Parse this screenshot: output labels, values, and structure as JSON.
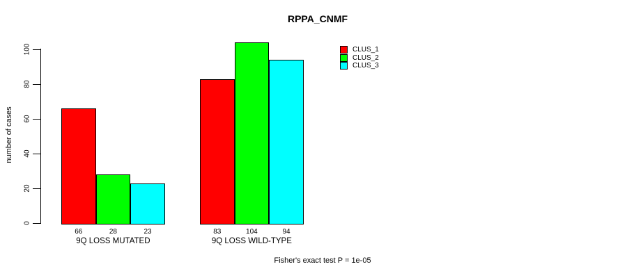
{
  "chart_data": {
    "type": "bar",
    "title": "RPPA_CNMF",
    "xlabel": "",
    "ylabel": "number of cases",
    "categories": [
      "9Q LOSS MUTATED",
      "9Q LOSS WILD-TYPE"
    ],
    "series": [
      {
        "name": "CLUS_1",
        "color": "#ff0000",
        "values": [
          66,
          83
        ]
      },
      {
        "name": "CLUS_2",
        "color": "#00ff00",
        "values": [
          28,
          104
        ]
      },
      {
        "name": "CLUS_3",
        "color": "#00ffff",
        "values": [
          23,
          94
        ]
      }
    ],
    "bar_value_labels": [
      [
        66,
        28,
        23
      ],
      [
        83,
        104,
        94
      ]
    ],
    "yticks": [
      0,
      20,
      40,
      60,
      80,
      100
    ],
    "ylim": [
      0,
      110
    ],
    "grid": false,
    "legend_position": "top-right",
    "legend_entries": [
      "CLUS_1",
      "CLUS_2",
      "CLUS_3"
    ],
    "annotation": "Fisher's exact test P = 1e-05"
  }
}
